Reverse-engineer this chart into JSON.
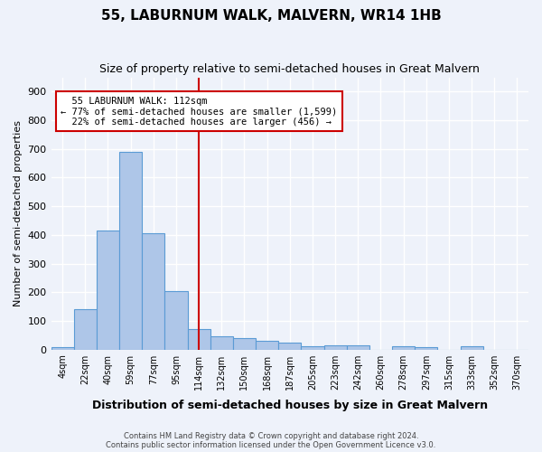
{
  "title": "55, LABURNUM WALK, MALVERN, WR14 1HB",
  "subtitle": "Size of property relative to semi-detached houses in Great Malvern",
  "xlabel": "Distribution of semi-detached houses by size in Great Malvern",
  "ylabel": "Number of semi-detached properties",
  "bar_labels": [
    "4sqm",
    "22sqm",
    "40sqm",
    "59sqm",
    "77sqm",
    "95sqm",
    "114sqm",
    "132sqm",
    "150sqm",
    "168sqm",
    "187sqm",
    "205sqm",
    "223sqm",
    "242sqm",
    "260sqm",
    "278sqm",
    "297sqm",
    "315sqm",
    "333sqm",
    "352sqm",
    "370sqm"
  ],
  "bar_values": [
    8,
    140,
    415,
    690,
    405,
    205,
    73,
    45,
    40,
    30,
    25,
    13,
    15,
    15,
    0,
    13,
    7,
    0,
    10,
    0,
    0
  ],
  "bar_color": "#aec6e8",
  "bar_edge_color": "#5b9bd5",
  "property_label": "55 LABURNUM WALK: 112sqm",
  "smaller_pct": "77%",
  "smaller_count": "1,599",
  "larger_pct": "22%",
  "larger_count": "456",
  "vline_x": 6.0,
  "ylim": [
    0,
    950
  ],
  "yticks": [
    0,
    100,
    200,
    300,
    400,
    500,
    600,
    700,
    800,
    900
  ],
  "annotation_box_color": "#ffffff",
  "annotation_box_edge": "#cc0000",
  "vline_color": "#cc0000",
  "footer1": "Contains HM Land Registry data © Crown copyright and database right 2024.",
  "footer2": "Contains public sector information licensed under the Open Government Licence v3.0.",
  "background_color": "#eef2fa",
  "grid_color": "#ffffff"
}
